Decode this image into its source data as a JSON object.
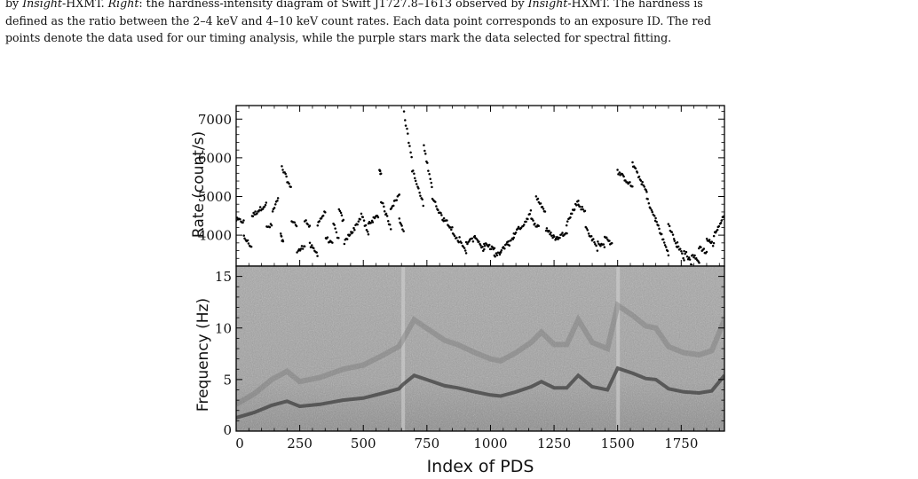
{
  "caption": {
    "line1": [
      {
        "t": "by ",
        "i": false
      },
      {
        "t": "Insight",
        "i": true
      },
      {
        "t": "-HXMT. ",
        "i": false
      },
      {
        "t": "Right",
        "i": true
      },
      {
        "t": ": the hardness-intensity diagram of Swift J1727.8–1613 observed by ",
        "i": false
      },
      {
        "t": "Insight",
        "i": true
      },
      {
        "t": "-HXMT. The hardness is",
        "i": false
      }
    ],
    "line2": "defined as the ratio between the 2–4 keV and 4–10 keV count rates. Each data point corresponds to an exposure ID. The red",
    "line3": "points denote the data used for our timing analysis, while the purple stars mark the data selected for spectral fitting."
  },
  "chart_data": [
    {
      "type": "scatter",
      "panel": "top",
      "title": "",
      "xlabel": "",
      "ylabel": "Rate (count/s)",
      "xlim": [
        0,
        1920
      ],
      "ylim": [
        3200,
        7350
      ],
      "yticks": [
        4000,
        5000,
        6000,
        7000
      ],
      "marker_color": "#000000",
      "segments": [
        {
          "x": [
            0,
            30
          ],
          "y": [
            4400,
            4350
          ]
        },
        {
          "x": [
            30,
            60
          ],
          "y": [
            3950,
            3700
          ]
        },
        {
          "x": [
            62,
            118
          ],
          "y": [
            4500,
            4800
          ]
        },
        {
          "x": [
            120,
            140
          ],
          "y": [
            4200,
            4250
          ]
        },
        {
          "x": [
            143,
            165
          ],
          "y": [
            4600,
            4950
          ]
        },
        {
          "x": [
            175,
            185
          ],
          "y": [
            4000,
            3800
          ]
        },
        {
          "x": [
            180,
            215
          ],
          "y": [
            5750,
            5200
          ]
        },
        {
          "x": [
            218,
            238
          ],
          "y": [
            4400,
            4250
          ]
        },
        {
          "x": [
            240,
            270
          ],
          "y": [
            3550,
            3750
          ]
        },
        {
          "x": [
            270,
            290
          ],
          "y": [
            4400,
            4200
          ]
        },
        {
          "x": [
            290,
            320
          ],
          "y": [
            3750,
            3500
          ]
        },
        {
          "x": [
            320,
            350
          ],
          "y": [
            4300,
            4600
          ]
        },
        {
          "x": [
            352,
            378
          ],
          "y": [
            3950,
            3750
          ]
        },
        {
          "x": [
            382,
            402
          ],
          "y": [
            4300,
            3900
          ]
        },
        {
          "x": [
            405,
            422
          ],
          "y": [
            4650,
            4350
          ]
        },
        {
          "x": [
            425,
            452
          ],
          "y": [
            3800,
            4100
          ]
        },
        {
          "x": [
            455,
            488
          ],
          "y": [
            4050,
            4450
          ]
        },
        {
          "x": [
            492,
            520
          ],
          "y": [
            4550,
            4000
          ]
        },
        {
          "x": [
            520,
            558
          ],
          "y": [
            4300,
            4500
          ]
        },
        {
          "x": [
            563,
            569
          ],
          "y": [
            5700,
            5600
          ]
        },
        {
          "x": [
            570,
            608
          ],
          "y": [
            4900,
            4200
          ]
        },
        {
          "x": [
            608,
            642
          ],
          "y": [
            4700,
            5050
          ]
        },
        {
          "x": [
            642,
            658
          ],
          "y": [
            4400,
            4150
          ]
        },
        {
          "x": [
            660,
            690
          ],
          "y": [
            7150,
            6000
          ]
        },
        {
          "x": [
            692,
            735
          ],
          "y": [
            5700,
            4800
          ]
        },
        {
          "x": [
            738,
            770
          ],
          "y": [
            6300,
            5250
          ]
        },
        {
          "x": [
            772,
            815
          ],
          "y": [
            4950,
            4400
          ]
        },
        {
          "x": [
            818,
            850
          ],
          "y": [
            4450,
            4150
          ]
        },
        {
          "x": [
            852,
            875
          ],
          "y": [
            4000,
            3850
          ]
        },
        {
          "x": [
            878,
            905
          ],
          "y": [
            3950,
            3500
          ]
        },
        {
          "x": [
            905,
            935
          ],
          "y": [
            3800,
            3900
          ]
        },
        {
          "x": [
            938,
            975
          ],
          "y": [
            4000,
            3600
          ]
        },
        {
          "x": [
            975,
            1015
          ],
          "y": [
            3750,
            3650
          ]
        },
        {
          "x": [
            1015,
            1040
          ],
          "y": [
            3450,
            3550
          ]
        },
        {
          "x": [
            1040,
            1070
          ],
          "y": [
            3550,
            3850
          ]
        },
        {
          "x": [
            1070,
            1092
          ],
          "y": [
            3750,
            3950
          ]
        },
        {
          "x": [
            1092,
            1125
          ],
          "y": [
            4050,
            4250
          ]
        },
        {
          "x": [
            1128,
            1158
          ],
          "y": [
            4250,
            4600
          ]
        },
        {
          "x": [
            1160,
            1190
          ],
          "y": [
            4400,
            4200
          ]
        },
        {
          "x": [
            1180,
            1215
          ],
          "y": [
            5000,
            4600
          ]
        },
        {
          "x": [
            1218,
            1258
          ],
          "y": [
            4150,
            3900
          ]
        },
        {
          "x": [
            1258,
            1300
          ],
          "y": [
            3900,
            4100
          ]
        },
        {
          "x": [
            1300,
            1345
          ],
          "y": [
            4300,
            4900
          ]
        },
        {
          "x": [
            1345,
            1372
          ],
          "y": [
            4800,
            4600
          ]
        },
        {
          "x": [
            1375,
            1400
          ],
          "y": [
            4200,
            3900
          ]
        },
        {
          "x": [
            1400,
            1420
          ],
          "y": [
            3900,
            3650
          ]
        },
        {
          "x": [
            1422,
            1448
          ],
          "y": [
            3800,
            3700
          ]
        },
        {
          "x": [
            1450,
            1478
          ],
          "y": [
            4000,
            3750
          ]
        },
        {
          "x": [
            1500,
            1558
          ],
          "y": [
            5650,
            5250
          ]
        },
        {
          "x": [
            1558,
            1615
          ],
          "y": [
            5850,
            5100
          ]
        },
        {
          "x": [
            1615,
            1648
          ],
          "y": [
            4950,
            4400
          ]
        },
        {
          "x": [
            1650,
            1700
          ],
          "y": [
            4400,
            3500
          ]
        },
        {
          "x": [
            1700,
            1735
          ],
          "y": [
            4300,
            3650
          ]
        },
        {
          "x": [
            1735,
            1762
          ],
          "y": [
            3800,
            3350
          ]
        },
        {
          "x": [
            1762,
            1792
          ],
          "y": [
            3600,
            3250
          ]
        },
        {
          "x": [
            1792,
            1820
          ],
          "y": [
            3500,
            3300
          ]
        },
        {
          "x": [
            1820,
            1850
          ],
          "y": [
            3700,
            3550
          ]
        },
        {
          "x": [
            1850,
            1878
          ],
          "y": [
            3900,
            3750
          ]
        },
        {
          "x": [
            1878,
            1920
          ],
          "y": [
            4000,
            4500
          ]
        }
      ]
    },
    {
      "type": "heatmap",
      "panel": "bottom",
      "title": "",
      "xlabel": "Index of PDS",
      "ylabel": "Frequency (Hz)",
      "xlim": [
        0,
        1920
      ],
      "ylim": [
        0,
        16
      ],
      "xticks": [
        0,
        250,
        500,
        750,
        1000,
        1250,
        1500,
        1750
      ],
      "yticks": [
        0,
        5,
        10,
        15
      ],
      "colormap": "grayscale",
      "background_color": "#a8a8a8",
      "qpo_fundamental_hz": {
        "x": [
          0,
          70,
          140,
          200,
          250,
          330,
          420,
          500,
          580,
          640,
          655,
          700,
          760,
          820,
          870,
          940,
          1000,
          1040,
          1100,
          1160,
          1200,
          1250,
          1300,
          1345,
          1400,
          1460,
          1500,
          1560,
          1610,
          1650,
          1700,
          1760,
          1820,
          1870,
          1920
        ],
        "y": [
          1.3,
          1.8,
          2.5,
          2.9,
          2.4,
          2.6,
          3.0,
          3.2,
          3.7,
          4.1,
          4.5,
          5.4,
          4.9,
          4.4,
          4.2,
          3.8,
          3.5,
          3.4,
          3.8,
          4.3,
          4.8,
          4.2,
          4.2,
          5.4,
          4.3,
          4.0,
          6.1,
          5.6,
          5.1,
          5.0,
          4.1,
          3.8,
          3.7,
          3.9,
          5.4
        ]
      },
      "qpo_harmonic_hz": {
        "x": [
          0,
          70,
          140,
          200,
          250,
          330,
          420,
          500,
          580,
          640,
          700,
          760,
          820,
          870,
          940,
          1000,
          1040,
          1100,
          1160,
          1200,
          1250,
          1300,
          1345,
          1400,
          1460,
          1500,
          1560,
          1610,
          1650,
          1700,
          1760,
          1820,
          1870,
          1920
        ],
        "y": [
          2.6,
          3.6,
          5.0,
          5.8,
          4.8,
          5.2,
          6.0,
          6.4,
          7.4,
          8.2,
          10.8,
          9.8,
          8.8,
          8.4,
          7.6,
          7.0,
          6.8,
          7.6,
          8.6,
          9.6,
          8.4,
          8.4,
          10.8,
          8.6,
          8.0,
          12.2,
          11.2,
          10.2,
          10.0,
          8.2,
          7.6,
          7.4,
          7.8,
          10.8
        ]
      },
      "vertical_bright_lines_x": [
        655,
        1500
      ]
    }
  ]
}
